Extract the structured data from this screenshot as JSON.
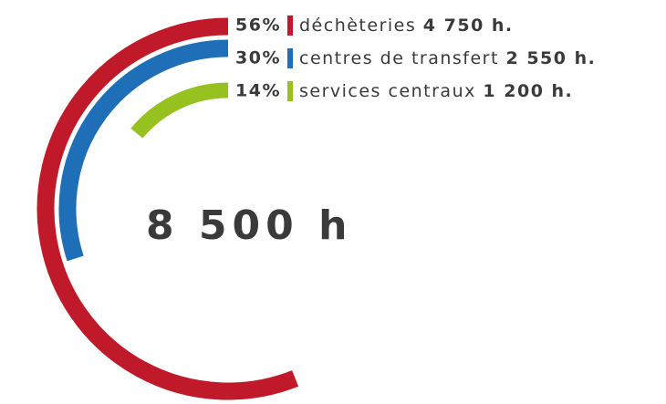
{
  "chart_data": {
    "type": "radial_bar",
    "categories": [
      "déchèteries",
      "centres de transfert",
      "services centraux"
    ],
    "values": [
      56,
      30,
      14
    ],
    "value_labels": [
      "56%",
      "30%",
      "14%"
    ],
    "hours": [
      {
        "value": 4750,
        "label": "4 750 h."
      },
      {
        "value": 2550,
        "label": "2 550 h."
      },
      {
        "value": 1200,
        "label": "1 200 h."
      }
    ],
    "colors": [
      "#c0192a",
      "#1e6fb8",
      "#97c11f"
    ],
    "ylim": [
      0,
      100
    ],
    "total": {
      "value": 8500,
      "label": "8 500 h"
    }
  }
}
